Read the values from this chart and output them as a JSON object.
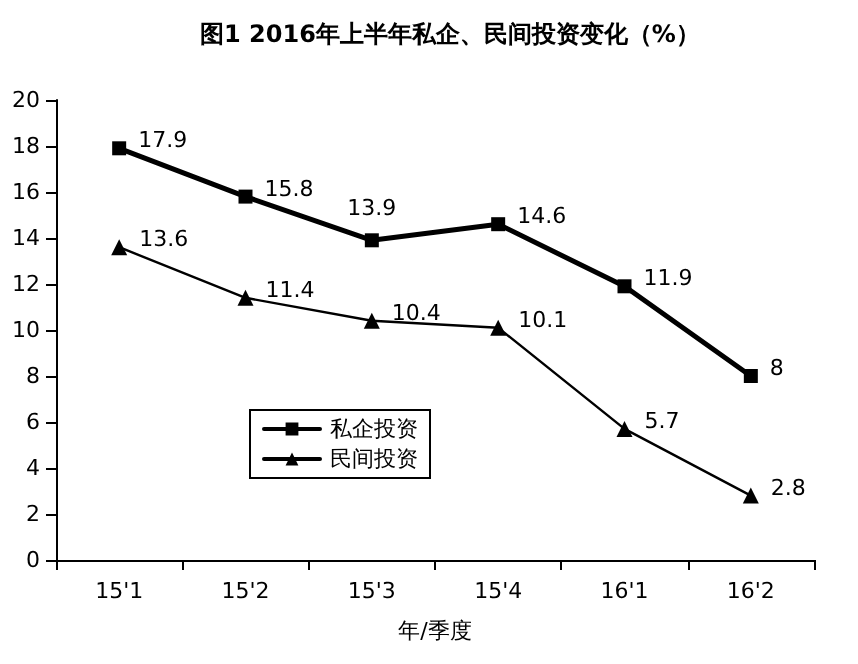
{
  "chart_data": {
    "type": "line",
    "title": "图1 2016年上半年私企、民间投资变化（%）",
    "xlabel": "年/季度",
    "categories": [
      "15'1",
      "15'2",
      "15'3",
      "15'4",
      "16'1",
      "16'2"
    ],
    "series": [
      {
        "name": "私企投资",
        "color": "#000000",
        "marker": "square",
        "values": [
          17.9,
          15.8,
          13.9,
          14.6,
          11.9,
          8
        ]
      },
      {
        "name": "民间投资",
        "color": "#000000",
        "marker": "triangle",
        "values": [
          13.6,
          11.4,
          10.4,
          10.1,
          5.7,
          2.8
        ]
      }
    ],
    "ylim": [
      0,
      20
    ],
    "yticks": [
      0,
      2,
      4,
      6,
      8,
      10,
      12,
      14,
      16,
      18,
      20
    ],
    "grid": false,
    "legend": "bottom left",
    "data_labels": true,
    "line_style": "solid"
  }
}
